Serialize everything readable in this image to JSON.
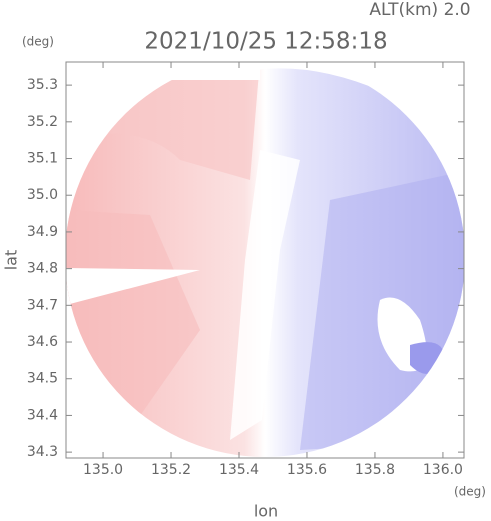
{
  "chart_data": {
    "type": "radar-image",
    "title": "2021/10/25 12:58:18",
    "subtitle": "ALT(km) 2.0",
    "x_label": "lon",
    "y_label": "lat",
    "x_unit": "(deg)",
    "y_unit": "(deg)",
    "xlim": [
      134.891,
      136.062
    ],
    "ylim": [
      34.284,
      35.363
    ],
    "xticks": [
      {
        "value": 135.0,
        "label": "135.0"
      },
      135.2,
      135.4,
      135.6,
      135.8,
      {
        "value": 136.0,
        "label": "136.0"
      }
    ],
    "yticks": [
      34.3,
      34.4,
      34.5,
      34.6,
      34.7,
      34.8,
      34.9,
      {
        "value": 35.0,
        "label": "35.0"
      },
      35.1,
      35.2,
      35.3
    ]
  }
}
